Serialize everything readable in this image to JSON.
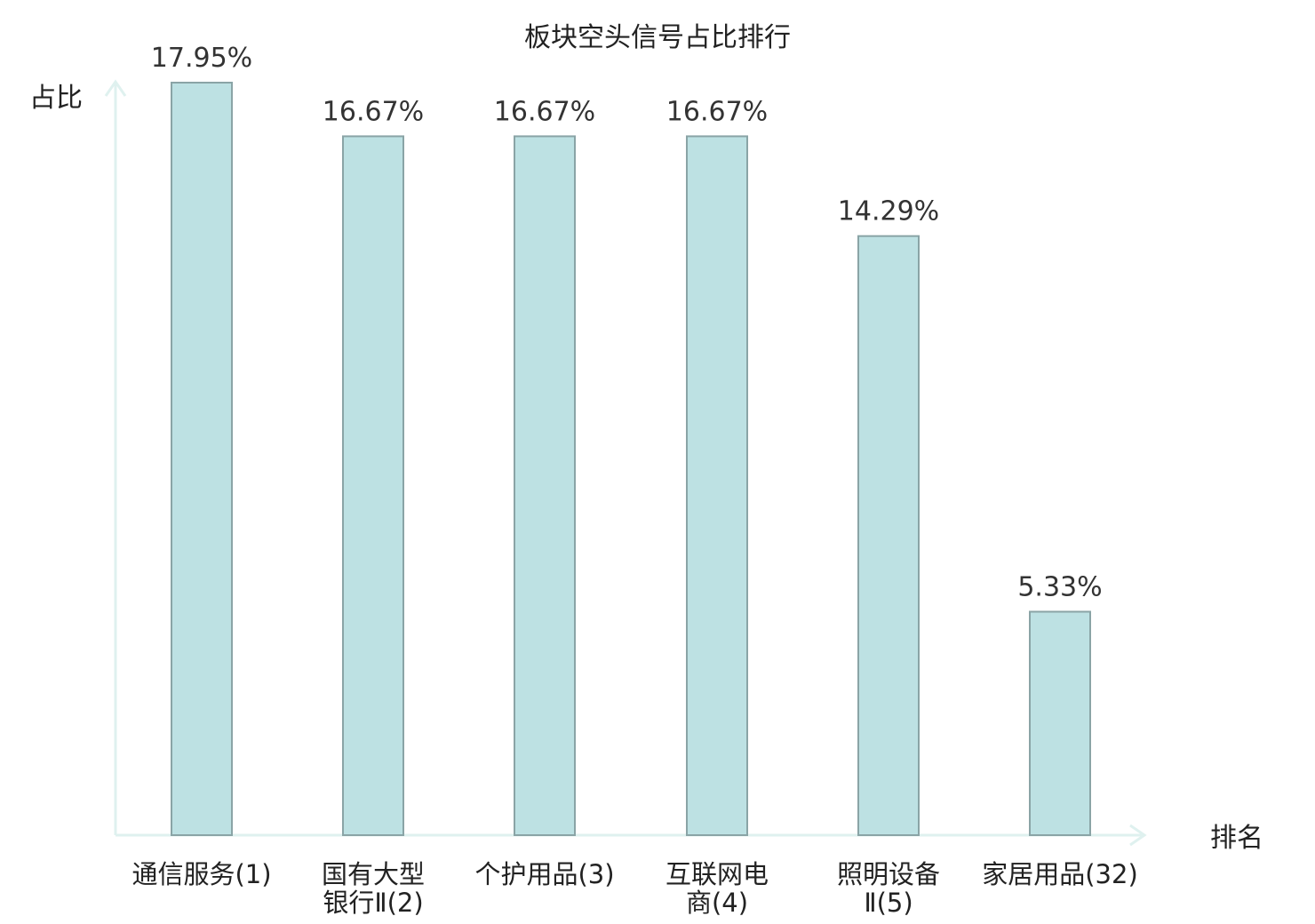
{
  "chart_data": {
    "type": "bar",
    "title": "板块空头信号占比排行",
    "ylabel": "占比",
    "xlabel": "排名",
    "ylim": [
      0,
      0.19
    ],
    "grid": false,
    "categories": [
      [
        "通信服务(1)"
      ],
      [
        "国有大型",
        "银行Ⅱ(2)"
      ],
      [
        "个护用品(3)"
      ],
      [
        "互联网电",
        "商(4)"
      ],
      [
        "照明设备",
        "Ⅱ(5)"
      ],
      [
        "家居用品(32)"
      ]
    ],
    "values": [
      0.1795,
      0.1667,
      0.1667,
      0.1667,
      0.1429,
      0.0533
    ],
    "value_labels": [
      "17.95%",
      "16.67%",
      "16.67%",
      "16.67%",
      "14.29%",
      "5.33%"
    ],
    "highlight_index": 5
  },
  "colors": {
    "bar_fill": "#bde1e3",
    "bar_stroke": "#8aa4a6",
    "axis": "#dff1ef",
    "text": "#222222",
    "highlight_text": "#d62020"
  }
}
